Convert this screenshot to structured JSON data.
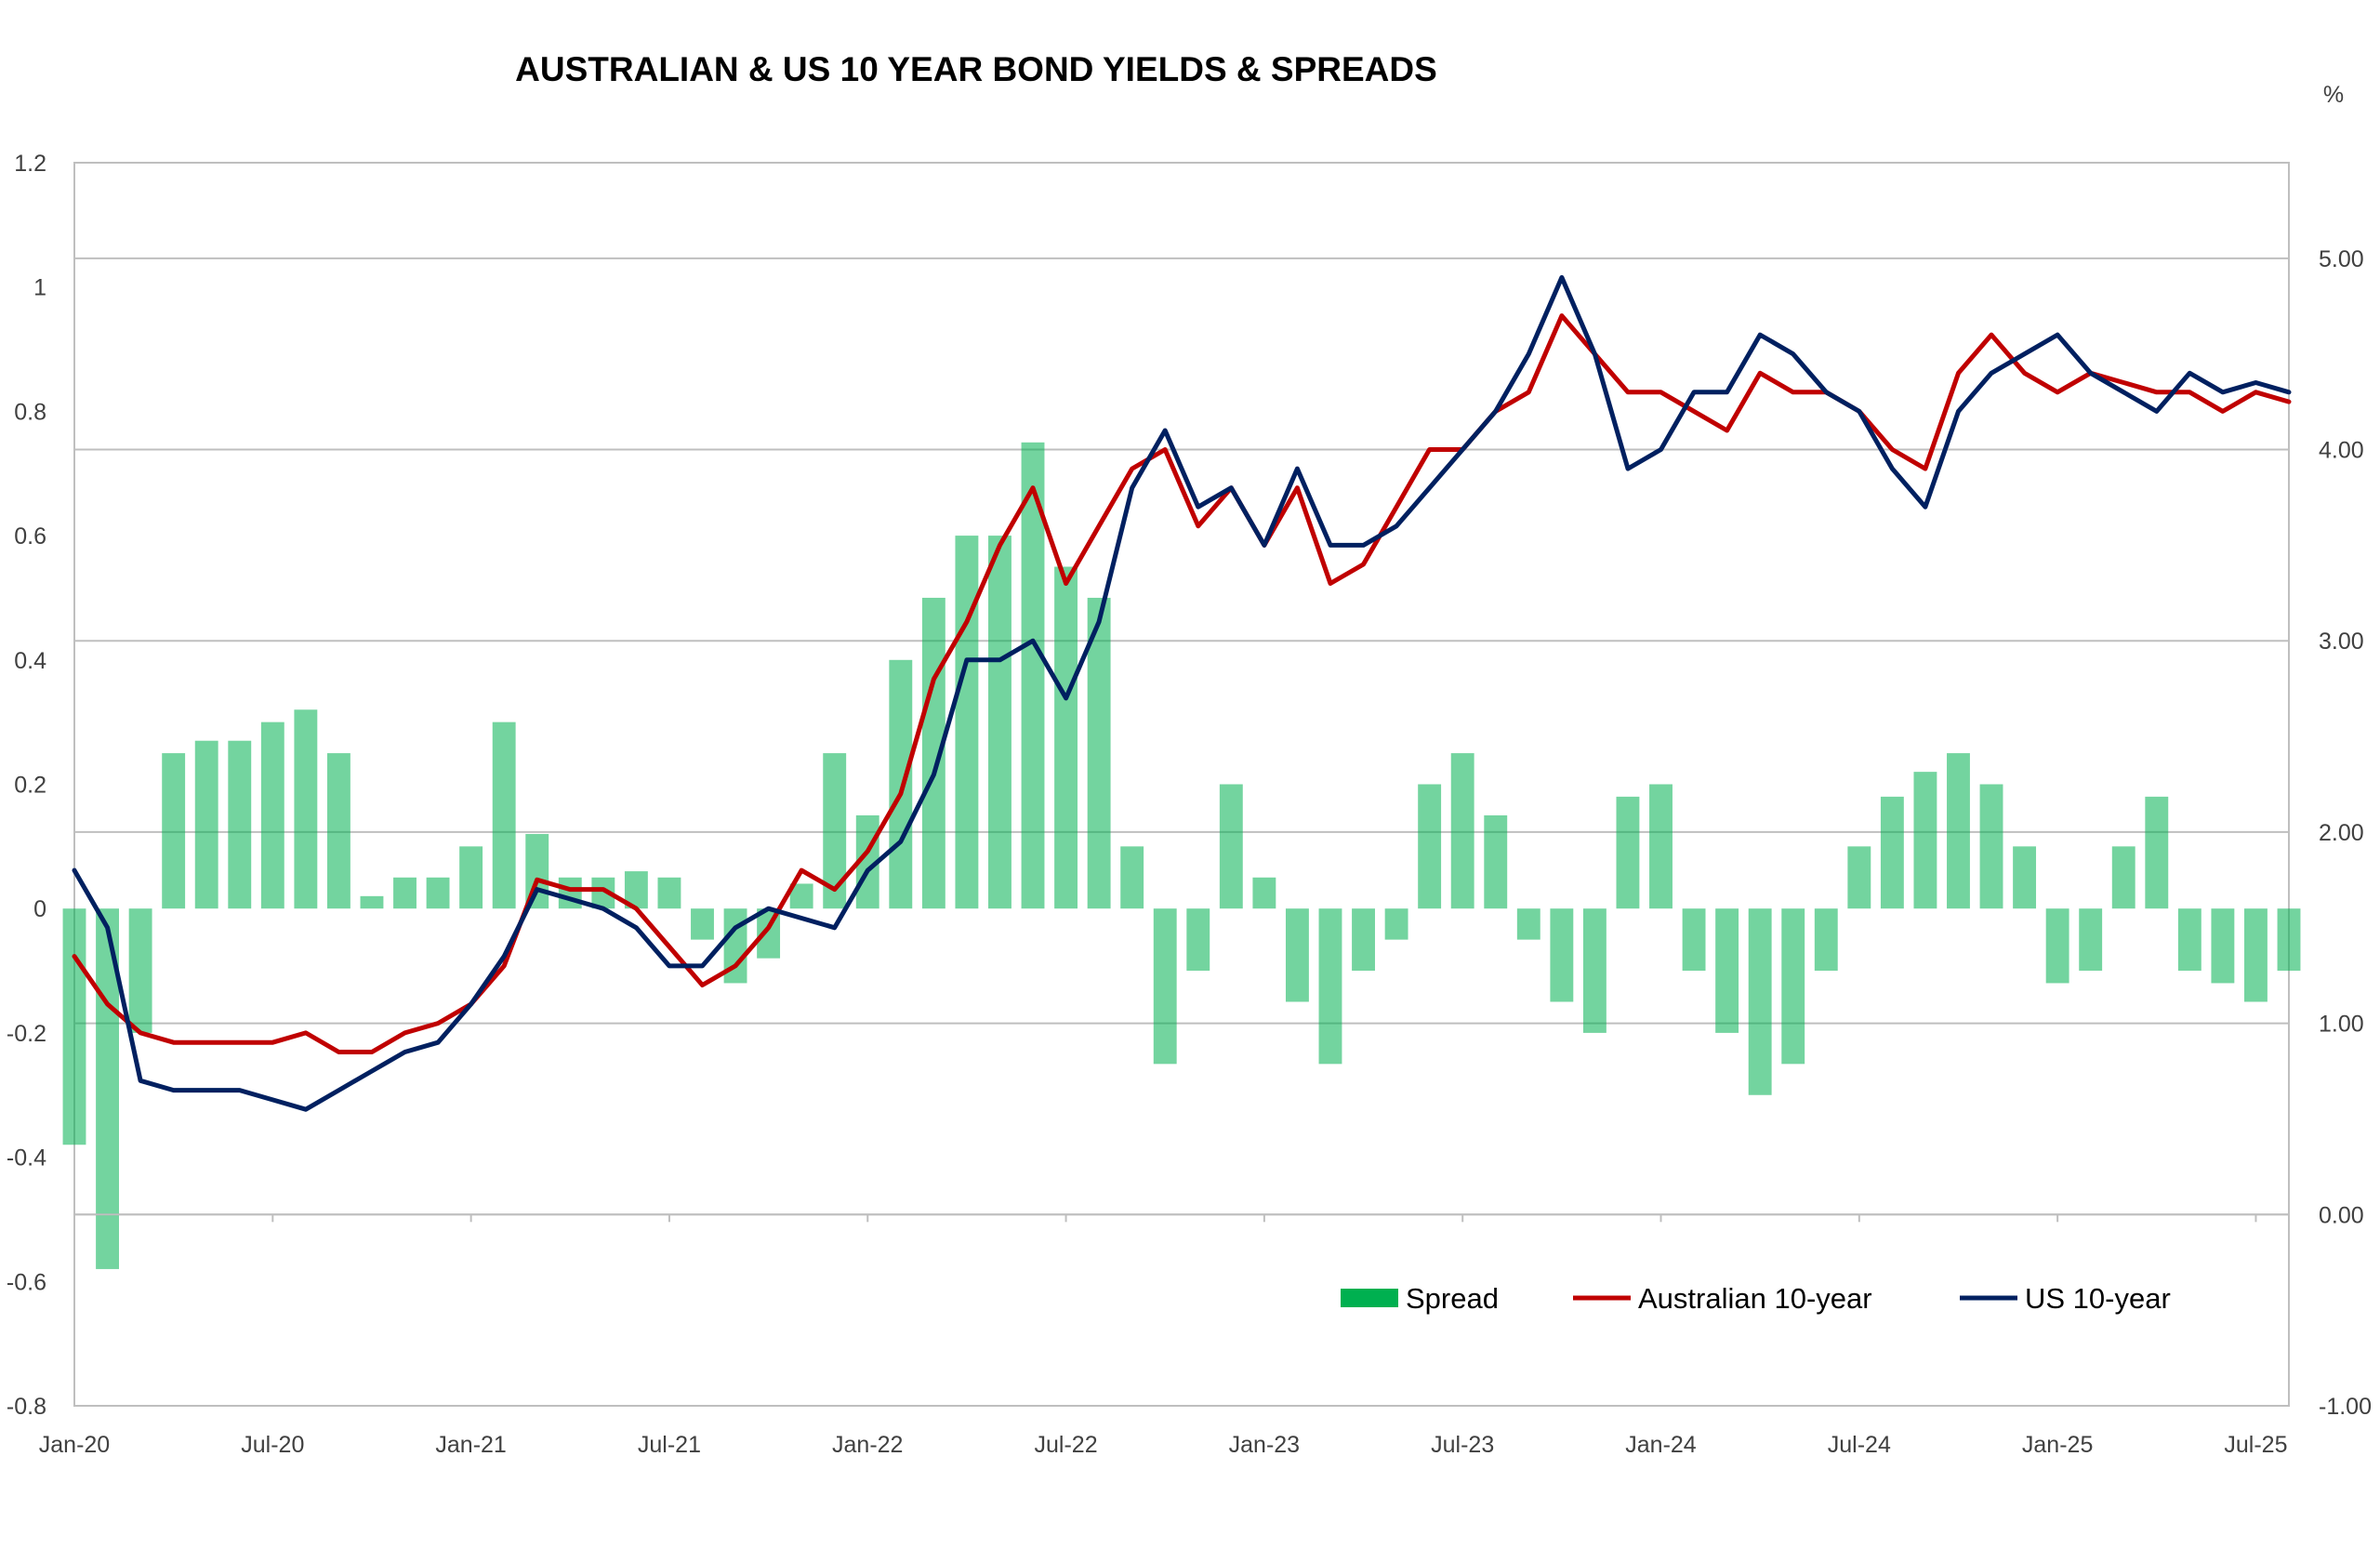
{
  "chart_data": {
    "type": "line",
    "title": "AUSTRALIAN & US 10 YEAR BOND YIELDS & SPREADS",
    "right_axis_unit": "%",
    "left_axis": {
      "range": [
        -0.8,
        1.2
      ],
      "ticks": [
        {
          "value": 1.2,
          "label": "1.2"
        },
        {
          "value": 1.0,
          "label": "1"
        },
        {
          "value": 0.8,
          "label": "0.8"
        },
        {
          "value": 0.6,
          "label": "0.6"
        },
        {
          "value": 0.4,
          "label": "0.4"
        },
        {
          "value": 0.2,
          "label": "0.2"
        },
        {
          "value": 0.0,
          "label": "0"
        },
        {
          "value": -0.2,
          "label": "-0.2"
        },
        {
          "value": -0.4,
          "label": "-0.4"
        },
        {
          "value": -0.6,
          "label": "-0.6"
        },
        {
          "value": -0.8,
          "label": "-0.8"
        }
      ]
    },
    "right_axis": {
      "range": [
        -1.0,
        5.5
      ],
      "ticks": [
        {
          "value": 5.0,
          "label": "5.00"
        },
        {
          "value": 4.0,
          "label": "4.00"
        },
        {
          "value": 3.0,
          "label": "3.00"
        },
        {
          "value": 2.0,
          "label": "2.00"
        },
        {
          "value": 1.0,
          "label": "1.00"
        },
        {
          "value": 0.0,
          "label": "0.00"
        },
        {
          "value": -1.0,
          "label": "-1.00"
        }
      ]
    },
    "x_axis": {
      "start": "2020-01",
      "end": "2025-08",
      "ticks": [
        {
          "date": "2020-01",
          "label": "Jan-20"
        },
        {
          "date": "2020-07",
          "label": "Jul-20"
        },
        {
          "date": "2021-01",
          "label": "Jan-21"
        },
        {
          "date": "2021-07",
          "label": "Jul-21"
        },
        {
          "date": "2022-01",
          "label": "Jan-22"
        },
        {
          "date": "2022-07",
          "label": "Jul-22"
        },
        {
          "date": "2023-01",
          "label": "Jan-23"
        },
        {
          "date": "2023-07",
          "label": "Jul-23"
        },
        {
          "date": "2024-01",
          "label": "Jan-24"
        },
        {
          "date": "2024-07",
          "label": "Jul-24"
        },
        {
          "date": "2025-01",
          "label": "Jan-25"
        },
        {
          "date": "2025-07",
          "label": "Jul-25"
        }
      ]
    },
    "gridlines": "horizontal at right-axis ticks",
    "legend_position": "bottom-right",
    "series": [
      {
        "name": "Spread",
        "kind": "bar",
        "axis": "left",
        "color": "#00b050",
        "x": [
          "2020-01",
          "2020-02",
          "2020-03",
          "2020-04",
          "2020-05",
          "2020-06",
          "2020-07",
          "2020-08",
          "2020-09",
          "2020-10",
          "2020-11",
          "2020-12",
          "2021-01",
          "2021-02",
          "2021-03",
          "2021-04",
          "2021-05",
          "2021-06",
          "2021-07",
          "2021-08",
          "2021-09",
          "2021-10",
          "2021-11",
          "2021-12",
          "2022-01",
          "2022-02",
          "2022-03",
          "2022-04",
          "2022-05",
          "2022-06",
          "2022-07",
          "2022-08",
          "2022-09",
          "2022-10",
          "2022-11",
          "2022-12",
          "2023-01",
          "2023-02",
          "2023-03",
          "2023-04",
          "2023-05",
          "2023-06",
          "2023-07",
          "2023-08",
          "2023-09",
          "2023-10",
          "2023-11",
          "2023-12",
          "2024-01",
          "2024-02",
          "2024-03",
          "2024-04",
          "2024-05",
          "2024-06",
          "2024-07",
          "2024-08",
          "2024-09",
          "2024-10",
          "2024-11",
          "2024-12",
          "2025-01",
          "2025-02",
          "2025-03",
          "2025-04",
          "2025-05",
          "2025-06",
          "2025-07",
          "2025-08"
        ],
        "values": [
          -0.38,
          -0.58,
          -0.2,
          0.25,
          0.27,
          0.27,
          0.3,
          0.32,
          0.25,
          0.02,
          0.05,
          0.05,
          0.1,
          0.3,
          0.12,
          0.05,
          0.05,
          0.06,
          0.05,
          -0.05,
          -0.12,
          -0.08,
          0.04,
          0.25,
          0.15,
          0.4,
          0.5,
          0.6,
          0.6,
          0.75,
          0.55,
          0.5,
          0.1,
          -0.25,
          -0.1,
          0.2,
          0.05,
          -0.15,
          -0.25,
          -0.1,
          -0.05,
          0.2,
          0.25,
          0.15,
          -0.05,
          -0.15,
          -0.2,
          0.18,
          0.2,
          -0.1,
          -0.2,
          -0.3,
          -0.25,
          -0.1,
          0.1,
          0.18,
          0.22,
          0.25,
          0.2,
          0.1,
          -0.12,
          -0.1,
          0.1,
          0.18,
          -0.1,
          -0.12,
          -0.15,
          -0.1
        ]
      },
      {
        "name": "Australian 10-year",
        "kind": "line",
        "axis": "right",
        "color": "#c00000",
        "x": [
          "2020-01",
          "2020-02",
          "2020-03",
          "2020-04",
          "2020-05",
          "2020-06",
          "2020-07",
          "2020-08",
          "2020-09",
          "2020-10",
          "2020-11",
          "2020-12",
          "2021-01",
          "2021-02",
          "2021-03",
          "2021-04",
          "2021-05",
          "2021-06",
          "2021-07",
          "2021-08",
          "2021-09",
          "2021-10",
          "2021-11",
          "2021-12",
          "2022-01",
          "2022-02",
          "2022-03",
          "2022-04",
          "2022-05",
          "2022-06",
          "2022-07",
          "2022-08",
          "2022-09",
          "2022-10",
          "2022-11",
          "2022-12",
          "2023-01",
          "2023-02",
          "2023-03",
          "2023-04",
          "2023-05",
          "2023-06",
          "2023-07",
          "2023-08",
          "2023-09",
          "2023-10",
          "2023-11",
          "2023-12",
          "2024-01",
          "2024-02",
          "2024-03",
          "2024-04",
          "2024-05",
          "2024-06",
          "2024-07",
          "2024-08",
          "2024-09",
          "2024-10",
          "2024-11",
          "2024-12",
          "2025-01",
          "2025-02",
          "2025-03",
          "2025-04",
          "2025-05",
          "2025-06",
          "2025-07",
          "2025-08"
        ],
        "values": [
          1.35,
          1.1,
          0.95,
          0.9,
          0.9,
          0.9,
          0.9,
          0.95,
          0.85,
          0.85,
          0.95,
          1.0,
          1.1,
          1.3,
          1.75,
          1.7,
          1.7,
          1.6,
          1.4,
          1.2,
          1.3,
          1.5,
          1.8,
          1.7,
          1.9,
          2.2,
          2.8,
          3.1,
          3.5,
          3.8,
          3.3,
          3.6,
          3.9,
          4.0,
          3.6,
          3.8,
          3.5,
          3.8,
          3.3,
          3.4,
          3.7,
          4.0,
          4.0,
          4.2,
          4.3,
          4.7,
          4.5,
          4.3,
          4.3,
          4.2,
          4.1,
          4.4,
          4.3,
          4.3,
          4.2,
          4.0,
          3.9,
          4.4,
          4.6,
          4.4,
          4.3,
          4.4,
          4.35,
          4.3,
          4.3,
          4.2,
          4.3,
          4.25
        ]
      },
      {
        "name": "US 10-year",
        "kind": "line",
        "axis": "right",
        "color": "#002060",
        "x": [
          "2020-01",
          "2020-02",
          "2020-03",
          "2020-04",
          "2020-05",
          "2020-06",
          "2020-07",
          "2020-08",
          "2020-09",
          "2020-10",
          "2020-11",
          "2020-12",
          "2021-01",
          "2021-02",
          "2021-03",
          "2021-04",
          "2021-05",
          "2021-06",
          "2021-07",
          "2021-08",
          "2021-09",
          "2021-10",
          "2021-11",
          "2021-12",
          "2022-01",
          "2022-02",
          "2022-03",
          "2022-04",
          "2022-05",
          "2022-06",
          "2022-07",
          "2022-08",
          "2022-09",
          "2022-10",
          "2022-11",
          "2022-12",
          "2023-01",
          "2023-02",
          "2023-03",
          "2023-04",
          "2023-05",
          "2023-06",
          "2023-07",
          "2023-08",
          "2023-09",
          "2023-10",
          "2023-11",
          "2023-12",
          "2024-01",
          "2024-02",
          "2024-03",
          "2024-04",
          "2024-05",
          "2024-06",
          "2024-07",
          "2024-08",
          "2024-09",
          "2024-10",
          "2024-11",
          "2024-12",
          "2025-01",
          "2025-02",
          "2025-03",
          "2025-04",
          "2025-05",
          "2025-06",
          "2025-07",
          "2025-08"
        ],
        "values": [
          1.8,
          1.5,
          0.7,
          0.65,
          0.65,
          0.65,
          0.6,
          0.55,
          0.65,
          0.75,
          0.85,
          0.9,
          1.1,
          1.35,
          1.7,
          1.65,
          1.6,
          1.5,
          1.3,
          1.3,
          1.5,
          1.6,
          1.55,
          1.5,
          1.8,
          1.95,
          2.3,
          2.9,
          2.9,
          3.0,
          2.7,
          3.1,
          3.8,
          4.1,
          3.7,
          3.8,
          3.5,
          3.9,
          3.5,
          3.5,
          3.6,
          3.8,
          4.0,
          4.2,
          4.5,
          4.9,
          4.5,
          3.9,
          4.0,
          4.3,
          4.3,
          4.6,
          4.5,
          4.3,
          4.2,
          3.9,
          3.7,
          4.2,
          4.4,
          4.5,
          4.6,
          4.4,
          4.3,
          4.2,
          4.4,
          4.3,
          4.35,
          4.3
        ]
      }
    ]
  }
}
